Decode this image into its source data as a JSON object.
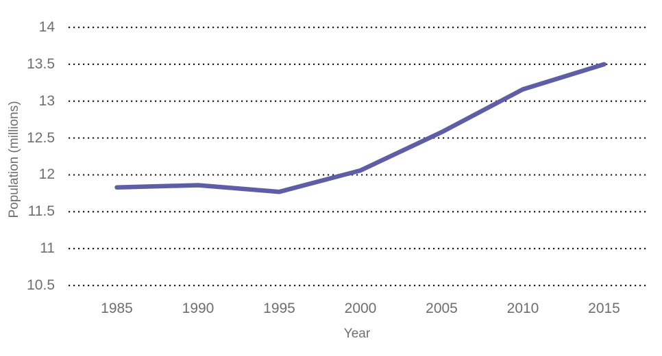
{
  "chart_data": {
    "type": "line",
    "title": "",
    "xlabel": "Year",
    "ylabel": "Population (millions)",
    "x": [
      1985,
      1990,
      1995,
      2000,
      2005,
      2010,
      2015
    ],
    "x_tick_labels": [
      "1985",
      "1990",
      "1995",
      "2000",
      "2005",
      "2010",
      "2015"
    ],
    "series": [
      {
        "name": "Population",
        "values": [
          11.83,
          11.86,
          11.77,
          12.06,
          12.58,
          13.16,
          13.5
        ]
      }
    ],
    "ylim": [
      10.5,
      14
    ],
    "y_ticks": [
      10.5,
      11,
      11.5,
      12,
      12.5,
      13,
      13.5,
      14
    ],
    "y_tick_labels": [
      "10.5",
      "11",
      "11.5",
      "12",
      "12.5",
      "13",
      "13.5",
      "14"
    ],
    "grid": "horizontal-dotted",
    "legend": "none",
    "markers": "none",
    "line_color": "#5e5ea7",
    "grid_color": "#1b1b1b",
    "text_color": "#6e6e6e",
    "background_color": "#ffffff"
  }
}
